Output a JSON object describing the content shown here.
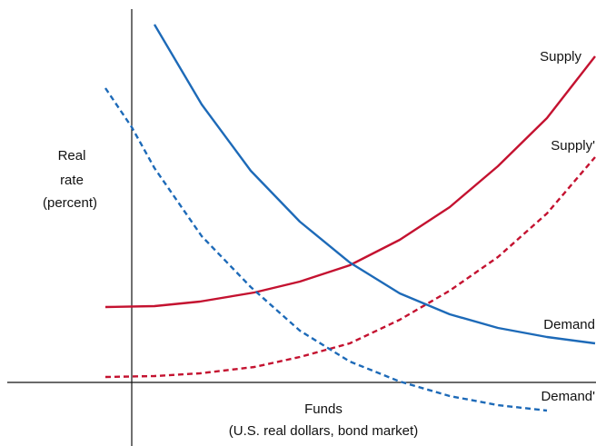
{
  "axes": {
    "y_label": [
      "Real",
      "rate",
      "(percent)"
    ],
    "x_label": [
      "Funds",
      "(U.S. real dollars, bond market)"
    ]
  },
  "curves": {
    "supply": "Supply",
    "supply_shifted": "Supply'",
    "demand": "Demand",
    "demand_shifted": "Demand'"
  }
}
